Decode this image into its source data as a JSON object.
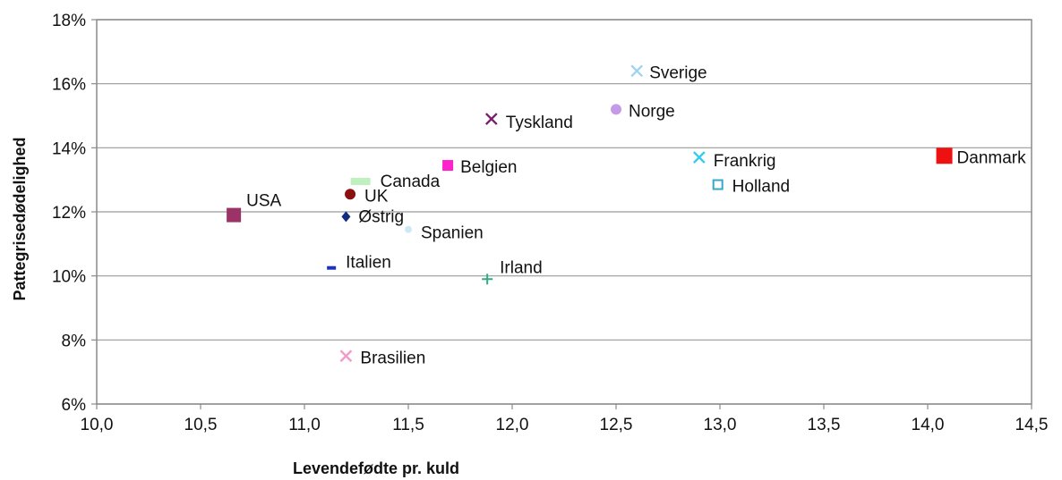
{
  "chart_data": {
    "type": "scatter",
    "xlabel": "Levendefødte pr. kuld",
    "ylabel": "Pattegrisedødelighed",
    "xlim": [
      10.0,
      14.5
    ],
    "ylim": [
      6,
      18
    ],
    "x_ticks": [
      "10,0",
      "10,5",
      "11,0",
      "11,5",
      "12,0",
      "12,5",
      "13,0",
      "13,5",
      "14,0",
      "14,5"
    ],
    "y_ticks": [
      "6%",
      "8%",
      "10%",
      "12%",
      "14%",
      "16%",
      "18%"
    ],
    "grid": "horizontal",
    "legend": "none",
    "points": [
      {
        "label": "Sverige",
        "x": 12.6,
        "y": 16.4,
        "marker": "x",
        "color": "#9fd4f0"
      },
      {
        "label": "Norge",
        "x": 12.5,
        "y": 15.2,
        "marker": "circle",
        "color": "#c59be8"
      },
      {
        "label": "Tyskland",
        "x": 11.9,
        "y": 14.9,
        "marker": "x",
        "color": "#7a1f6e"
      },
      {
        "label": "Frankrig",
        "x": 12.9,
        "y": 13.7,
        "marker": "x",
        "color": "#33ccee"
      },
      {
        "label": "Danmark",
        "x": 14.08,
        "y": 13.75,
        "marker": "square",
        "color": "#ee1111"
      },
      {
        "label": "Belgien",
        "x": 11.69,
        "y": 13.45,
        "marker": "square",
        "color": "#ff22cc"
      },
      {
        "label": "Canada",
        "x": 11.27,
        "y": 12.95,
        "marker": "dash",
        "color": "#bff0bf"
      },
      {
        "label": "Holland",
        "x": 12.99,
        "y": 12.85,
        "marker": "square-open",
        "color": "#33aacc"
      },
      {
        "label": "UK",
        "x": 11.22,
        "y": 12.55,
        "marker": "circle",
        "color": "#8b1111"
      },
      {
        "label": "USA",
        "x": 10.66,
        "y": 11.9,
        "marker": "square",
        "color": "#9b3366"
      },
      {
        "label": "Østrig",
        "x": 11.2,
        "y": 11.85,
        "marker": "diamond",
        "color": "#0f2c80"
      },
      {
        "label": "Spanien",
        "x": 11.5,
        "y": 11.45,
        "marker": "dot",
        "color": "#cfe8f5"
      },
      {
        "label": "Italien",
        "x": 11.13,
        "y": 10.25,
        "marker": "dash",
        "color": "#1a33bb"
      },
      {
        "label": "Irland",
        "x": 11.88,
        "y": 9.9,
        "marker": "plus",
        "color": "#33aa88"
      },
      {
        "label": "Brasilien",
        "x": 11.2,
        "y": 7.5,
        "marker": "x",
        "color": "#f29ac8"
      }
    ]
  }
}
